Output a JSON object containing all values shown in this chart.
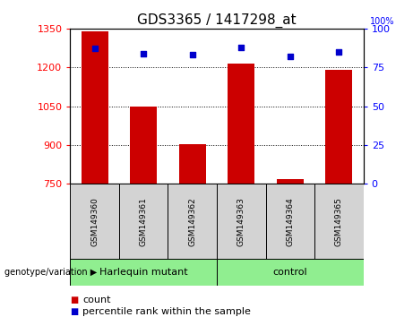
{
  "title": "GDS3365 / 1417298_at",
  "samples": [
    "GSM149360",
    "GSM149361",
    "GSM149362",
    "GSM149363",
    "GSM149364",
    "GSM149365"
  ],
  "counts": [
    1340,
    1050,
    905,
    1215,
    770,
    1190
  ],
  "percentiles": [
    87,
    84,
    83,
    88,
    82,
    85
  ],
  "ylim_left": [
    750,
    1350
  ],
  "ylim_right": [
    0,
    100
  ],
  "yticks_left": [
    750,
    900,
    1050,
    1200,
    1350
  ],
  "yticks_right": [
    0,
    25,
    50,
    75,
    100
  ],
  "bar_color": "#cc0000",
  "dot_color": "#0000cc",
  "group_label": "genotype/variation",
  "group1_label": "Harlequin mutant",
  "group2_label": "control",
  "group_color": "#90ee90",
  "sample_box_color": "#d3d3d3",
  "legend_count": "count",
  "legend_percentile": "percentile rank within the sample",
  "bar_width": 0.55,
  "title_fontsize": 11,
  "tick_fontsize": 8,
  "sample_fontsize": 6.5,
  "group_fontsize": 8,
  "legend_fontsize": 8
}
